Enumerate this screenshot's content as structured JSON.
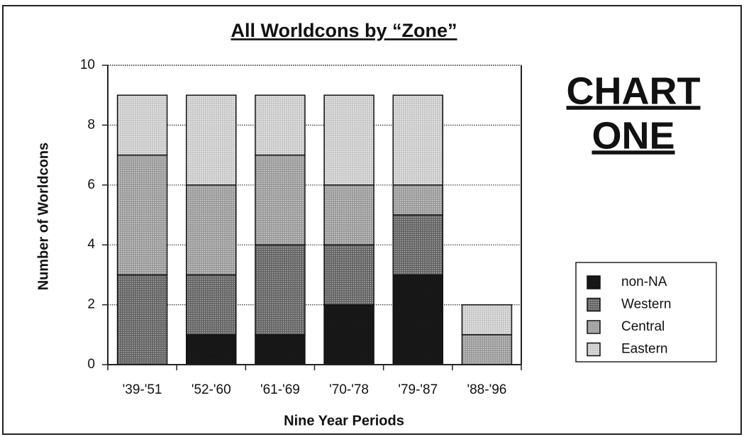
{
  "chart_data": {
    "type": "stacked_bar",
    "title": "All Worldcons by “Zone”",
    "annotations": [
      "CHART",
      "ONE"
    ],
    "xlabel": "Nine Year Periods",
    "ylabel": "Number of Worldcons",
    "categories": [
      "'39-'51",
      "'52-'60",
      "'61-'69",
      "'70-'78",
      "'79-'87",
      "'88-'96"
    ],
    "series": [
      {
        "name": "non-NA",
        "color": "#1a1a1a",
        "values": [
          0,
          1,
          1,
          2,
          3,
          0
        ]
      },
      {
        "name": "Western",
        "color": "#6e6e6e",
        "values": [
          3,
          2,
          3,
          2,
          2,
          0
        ]
      },
      {
        "name": "Central",
        "color": "#a6a6a6",
        "values": [
          4,
          3,
          3,
          2,
          1,
          1
        ]
      },
      {
        "name": "Eastern",
        "color": "#d6d6d6",
        "values": [
          2,
          3,
          2,
          3,
          3,
          1
        ]
      }
    ],
    "ylim": [
      0,
      10
    ],
    "yticks": [
      0,
      2,
      4,
      6,
      8,
      10
    ],
    "grid": true,
    "legend": "right"
  }
}
